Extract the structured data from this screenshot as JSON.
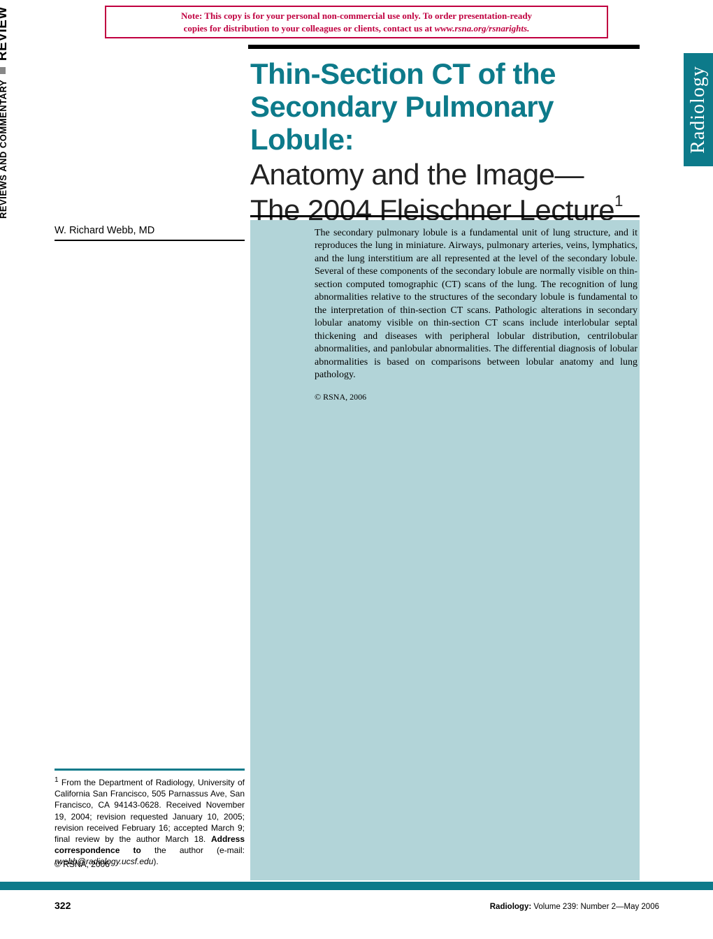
{
  "notice": {
    "line1_prefix": "Note:   ",
    "line1": "This copy is for your personal non-commercial use only. To order presentation-ready",
    "line2_plain": "copies for distribution to your colleagues or clients, contact us at ",
    "line2_ital": "www.rsna.org/rsnarights."
  },
  "sidebar": {
    "small": "REVIEWS AND COMMENTARY",
    "large": "REVIEW"
  },
  "title": {
    "bold_line1": "Thin-Section CT of the",
    "bold_line2": "Secondary Pulmonary Lobule:",
    "light_line1": "Anatomy and the Image—",
    "light_line2": "The 2004 Fleischner Lecture",
    "superscript": "1"
  },
  "journal_tab": "Radiology",
  "author": "W. Richard Webb, MD",
  "abstract": {
    "body": "The secondary pulmonary lobule is a fundamental unit of lung structure, and it reproduces the lung in miniature. Airways, pulmonary arteries, veins, lymphatics, and the lung interstitium are all represented at the level of the secondary lobule. Several of these components of the secondary lobule are normally visible on thin-section computed tomographic (CT) scans of the lung. The recognition of lung abnormalities relative to the structures of the secondary lobule is fundamental to the interpretation of thin-section CT scans. Pathologic alterations in secondary lobular anatomy visible on thin-section CT scans include interlobular septal thickening and diseases with peripheral lobular distribution, centrilobular abnormalities, and panlobular abnormalities. The differential diagnosis of lobular abnormalities is based on comparisons between lobular anatomy and lung pathology.",
    "copyright": "© RSNA, 2006"
  },
  "footnote": {
    "sup": "1",
    "text_a": " From the Department of Radiology, University of California San Francisco, 505 Parnassus Ave, San Francisco, CA 94143-0628. Received November 19, 2004; revision requested January 10, 2005; revision received February 16; accepted March 9; final review by the author March 18. ",
    "bold": "Address correspondence to",
    "text_b": " the author (e-mail: ",
    "email": "rwebb@radiology.ucsf.edu",
    "text_c": ").",
    "copyright": "© RSNA, 2006"
  },
  "footer": {
    "page": "322",
    "journal_bold": "Radiology:",
    "cite": " Volume 239: Number 2—May 2006"
  },
  "colors": {
    "teal": "#0d7a8a",
    "teal_light": "#b2d4d8",
    "notice_red": "#c00040"
  }
}
